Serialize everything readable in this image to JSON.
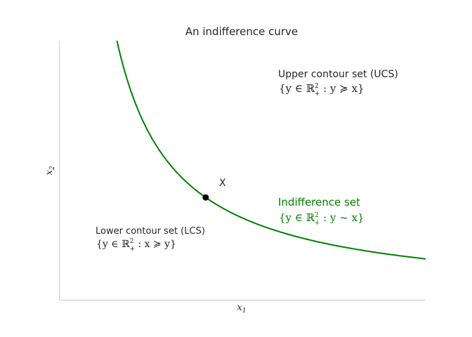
{
  "chart_data": {
    "type": "line",
    "title": "An indifference curve",
    "xlabel_main": "x",
    "xlabel_sub": "1",
    "ylabel_main": "x",
    "ylabel_sub": "2",
    "xlim": [
      0,
      10
    ],
    "ylim": [
      0,
      10
    ],
    "grid": false,
    "series": [
      {
        "color": "#008000",
        "x": [
          1.58,
          1.8,
          2.0,
          2.25,
          2.5,
          3.0,
          3.5,
          4.0,
          4.5,
          5.0,
          6.0,
          7.0,
          8.0,
          9.0,
          10.0
        ],
        "y": [
          10.0,
          8.78,
          7.9,
          7.02,
          6.32,
          5.27,
          4.51,
          3.95,
          3.51,
          3.16,
          2.63,
          2.26,
          1.98,
          1.76,
          1.58
        ]
      }
    ],
    "point": {
      "label": "X",
      "x": 4.0,
      "y": 3.95,
      "color": "#000000"
    },
    "annotations": {
      "ucs": {
        "label": "Upper contour set (UCS)",
        "math_pre": "{y ∈ ℝ",
        "math_sup": "2",
        "math_sub": "+",
        "math_post": " : y ≽ x}",
        "color": "#262626"
      },
      "indifference": {
        "label": "Indifference set",
        "math_pre": "{y ∈ ℝ",
        "math_sup": "2",
        "math_sub": "+",
        "math_post": " : y ~ x}",
        "color": "#008000"
      },
      "lcs": {
        "label": "Lower contour set (LCS)",
        "math_pre": "{y ∈ ℝ",
        "math_sup": "2",
        "math_sub": "+",
        "math_post": " : x ≽ y}",
        "color": "#262626"
      }
    }
  }
}
